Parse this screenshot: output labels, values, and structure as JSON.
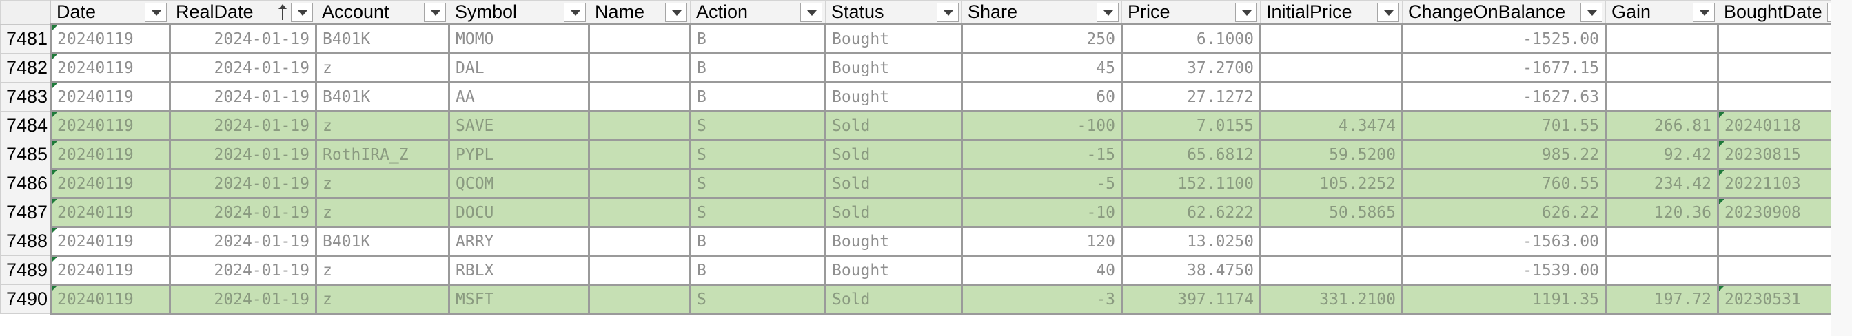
{
  "headers": [
    "Date",
    "RealDate",
    "Account",
    "Symbol",
    "Name",
    "Action",
    "Status",
    "Share",
    "Price",
    "InitialPrice",
    "ChangeOnBalance",
    "Gain",
    "BoughtDate"
  ],
  "sorted_column": "RealDate",
  "colors": {
    "sold_fill": "#c6e0b4",
    "bought_fill": "#ffffff",
    "header_bg": "#f3f3f3",
    "error_triangle": "#1f7a3a"
  },
  "rows": [
    {
      "num": "7481",
      "status_kind": "bought",
      "cells": [
        "20240119",
        "2024-01-19",
        "B401K",
        "MOMO",
        "",
        "B",
        "Bought",
        "250",
        "6.1000",
        "",
        "-1525.00",
        "",
        ""
      ]
    },
    {
      "num": "7482",
      "status_kind": "bought",
      "cells": [
        "20240119",
        "2024-01-19",
        "z",
        "DAL",
        "",
        "B",
        "Bought",
        "45",
        "37.2700",
        "",
        "-1677.15",
        "",
        ""
      ]
    },
    {
      "num": "7483",
      "status_kind": "bought",
      "cells": [
        "20240119",
        "2024-01-19",
        "B401K",
        "AA",
        "",
        "B",
        "Bought",
        "60",
        "27.1272",
        "",
        "-1627.63",
        "",
        ""
      ]
    },
    {
      "num": "7484",
      "status_kind": "sold",
      "cells": [
        "20240119",
        "2024-01-19",
        "z",
        "SAVE",
        "",
        "S",
        "Sold",
        "-100",
        "7.0155",
        "4.3474",
        "701.55",
        "266.81",
        "20240118"
      ]
    },
    {
      "num": "7485",
      "status_kind": "sold",
      "cells": [
        "20240119",
        "2024-01-19",
        "RothIRA_Z",
        "PYPL",
        "",
        "S",
        "Sold",
        "-15",
        "65.6812",
        "59.5200",
        "985.22",
        "92.42",
        "20230815"
      ]
    },
    {
      "num": "7486",
      "status_kind": "sold",
      "cells": [
        "20240119",
        "2024-01-19",
        "z",
        "QCOM",
        "",
        "S",
        "Sold",
        "-5",
        "152.1100",
        "105.2252",
        "760.55",
        "234.42",
        "20221103"
      ]
    },
    {
      "num": "7487",
      "status_kind": "sold",
      "cells": [
        "20240119",
        "2024-01-19",
        "z",
        "DOCU",
        "",
        "S",
        "Sold",
        "-10",
        "62.6222",
        "50.5865",
        "626.22",
        "120.36",
        "20230908"
      ]
    },
    {
      "num": "7488",
      "status_kind": "bought",
      "cells": [
        "20240119",
        "2024-01-19",
        "B401K",
        "ARRY",
        "",
        "B",
        "Bought",
        "120",
        "13.0250",
        "",
        "-1563.00",
        "",
        ""
      ]
    },
    {
      "num": "7489",
      "status_kind": "bought",
      "cells": [
        "20240119",
        "2024-01-19",
        "z",
        "RBLX",
        "",
        "B",
        "Bought",
        "40",
        "38.4750",
        "",
        "-1539.00",
        "",
        ""
      ]
    },
    {
      "num": "7490",
      "status_kind": "sold",
      "cells": [
        "20240119",
        "2024-01-19",
        "z",
        "MSFT",
        "",
        "S",
        "Sold",
        "-3",
        "397.1174",
        "331.2100",
        "1191.35",
        "197.72",
        "20230531"
      ]
    }
  ]
}
